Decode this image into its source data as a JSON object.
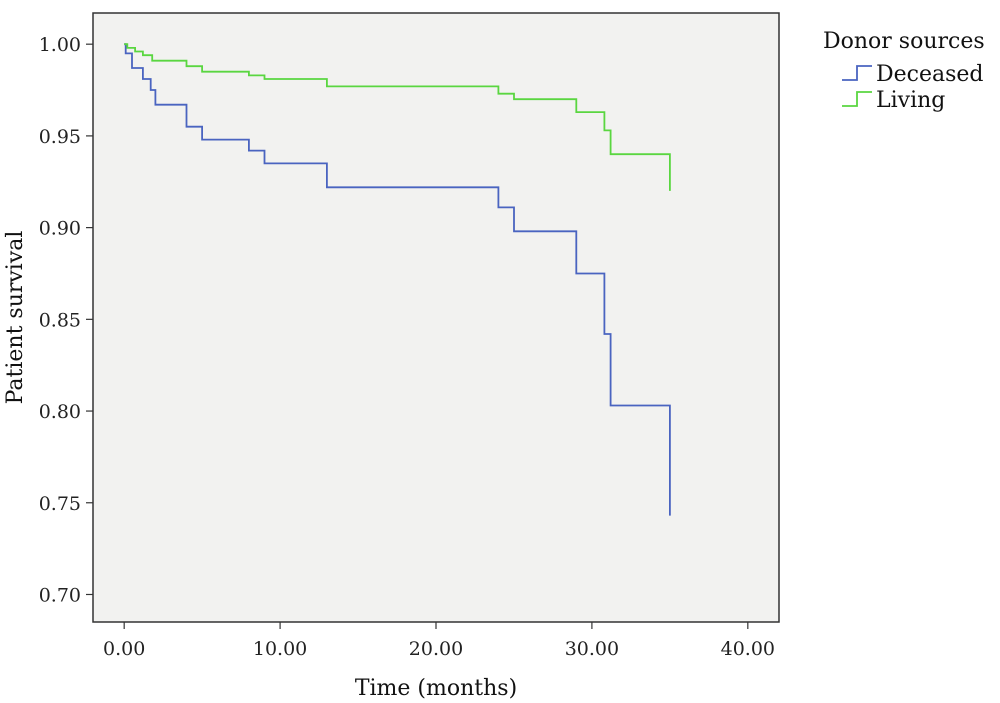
{
  "chart_data": {
    "type": "line",
    "xlabel": "Time (months)",
    "ylabel": "Patient survival",
    "xlim": [
      -2,
      42
    ],
    "ylim": [
      0.685,
      1.017
    ],
    "xticks": [
      0,
      10,
      20,
      30,
      40
    ],
    "xtick_labels": [
      "0.00",
      "10.00",
      "20.00",
      "30.00",
      "40.00"
    ],
    "yticks": [
      0.7,
      0.75,
      0.8,
      0.85,
      0.9,
      0.95,
      1.0
    ],
    "ytick_labels": [
      "0.70",
      "0.75",
      "0.80",
      "0.85",
      "0.90",
      "0.95",
      "1.00"
    ],
    "grid": false,
    "legend_title": "Donor sources",
    "legend_position": "top-right outside",
    "plot_background": "#f2f2f0",
    "series": [
      {
        "name": "Deceased",
        "color": "#4a64c0",
        "step": true,
        "x": [
          0,
          0.1,
          0.5,
          1.2,
          1.7,
          2.0,
          4.0,
          5.0,
          8.0,
          9.0,
          13.0,
          24.0,
          25.0,
          29.0,
          30.8,
          31.2,
          35.0
        ],
        "y": [
          1.0,
          0.995,
          0.987,
          0.981,
          0.975,
          0.967,
          0.955,
          0.948,
          0.942,
          0.935,
          0.922,
          0.911,
          0.898,
          0.875,
          0.842,
          0.803,
          0.743
        ]
      },
      {
        "name": "Living",
        "color": "#5ad640",
        "step": true,
        "x": [
          0,
          0.2,
          0.7,
          1.2,
          1.8,
          4.0,
          5.0,
          8.0,
          9.0,
          13.0,
          24.0,
          25.0,
          29.0,
          30.8,
          31.2,
          35.0
        ],
        "y": [
          1.0,
          0.998,
          0.996,
          0.994,
          0.991,
          0.988,
          0.985,
          0.983,
          0.981,
          0.977,
          0.973,
          0.97,
          0.963,
          0.953,
          0.94,
          0.92
        ]
      }
    ]
  }
}
